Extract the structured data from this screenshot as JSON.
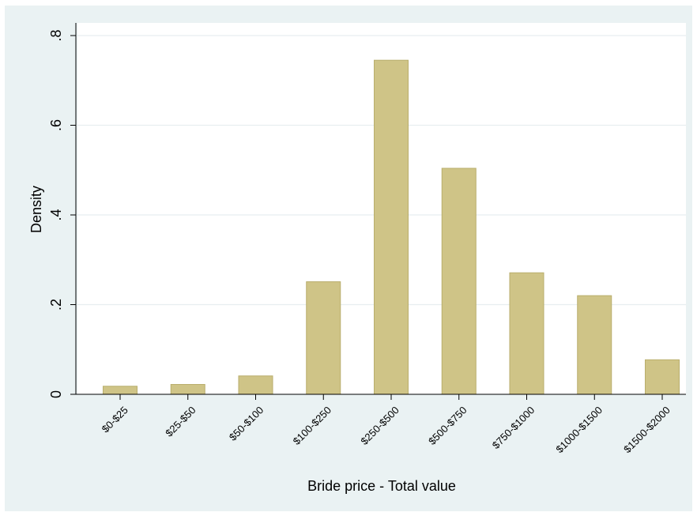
{
  "chart_data": {
    "type": "bar",
    "categories": [
      "$0-$25",
      "$25-$50",
      "$50-$100",
      "$100-$250",
      "$250-$500",
      "$500-$750",
      "$750-$1000",
      "$1000-$1500",
      "$1500-$2000"
    ],
    "values": [
      0.018,
      0.022,
      0.041,
      0.251,
      0.745,
      0.504,
      0.271,
      0.22,
      0.077
    ],
    "xlabel": "Bride price - Total value",
    "ylabel": "Density",
    "ylim": [
      0,
      0.8
    ],
    "yticks": [
      0,
      0.2,
      0.4,
      0.6,
      0.8
    ],
    "ytick_labels": [
      "0",
      ".2",
      ".4",
      ".6",
      ".8"
    ],
    "grid": true,
    "colors": {
      "bar_fill": "#cfc487",
      "bar_stroke": "#b9ae6c",
      "outer_background": "#eaf2f3",
      "plot_background": "#ffffff",
      "grid": "#e8eef0"
    }
  }
}
